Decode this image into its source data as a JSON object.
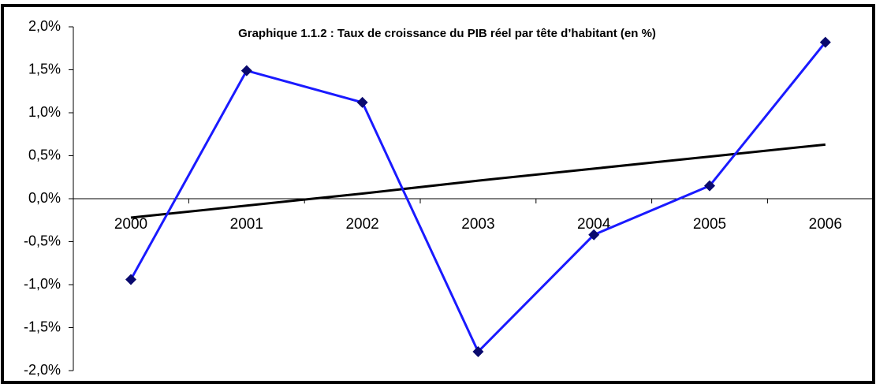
{
  "chart_data": {
    "type": "line",
    "title": "Graphique 1.1.2 :  Taux de croissance du PIB réel par tête d’habitant (en %)",
    "categories": [
      "2000",
      "2001",
      "2002",
      "2003",
      "2004",
      "2005",
      "2006"
    ],
    "series": [
      {
        "color": "#1a1aff",
        "marker_color": "#0a0a6e",
        "values": [
          -0.94,
          1.49,
          1.12,
          -1.78,
          -0.42,
          0.15,
          1.82
        ]
      },
      {
        "color": "#000000",
        "values": [
          -0.22,
          -0.08,
          0.06,
          0.21,
          0.35,
          0.49,
          0.63
        ]
      }
    ],
    "ylim": [
      -2.0,
      2.0
    ],
    "yticks": [
      {
        "value": -2.0,
        "label": "-2,0%"
      },
      {
        "value": -1.5,
        "label": "-1,5%"
      },
      {
        "value": -1.0,
        "label": "-1,0%"
      },
      {
        "value": -0.5,
        "label": "-0,5%"
      },
      {
        "value": 0.0,
        "label": "0,0%"
      },
      {
        "value": 0.5,
        "label": "0,5%"
      },
      {
        "value": 1.0,
        "label": "1,0%"
      },
      {
        "value": 1.5,
        "label": "1,5%"
      },
      {
        "value": 2.0,
        "label": "2,0%"
      }
    ]
  }
}
